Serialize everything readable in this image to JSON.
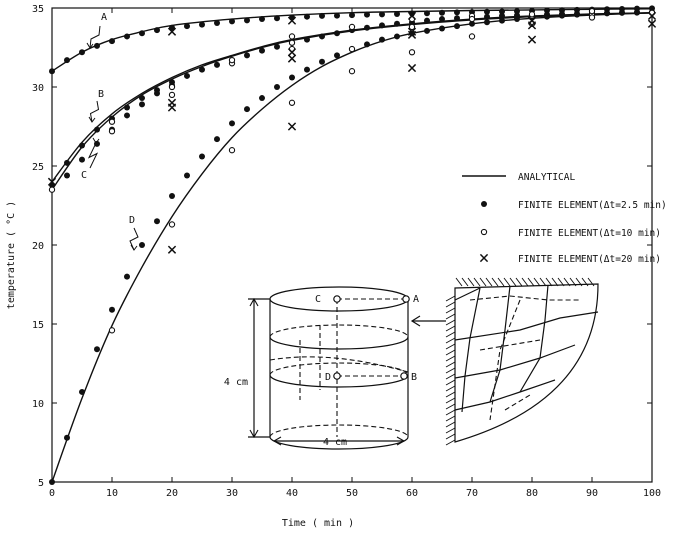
{
  "chart_data": {
    "type": "line",
    "xlabel": "Time ( min )",
    "ylabel": "temperature ( °C )",
    "xlim": [
      0,
      100
    ],
    "ylim": [
      5,
      35
    ],
    "x_ticks": [
      0,
      10,
      20,
      30,
      40,
      50,
      60,
      70,
      80,
      90,
      100
    ],
    "y_ticks": [
      5,
      10,
      15,
      20,
      25,
      30,
      35
    ],
    "grid": false,
    "legend": {
      "placement": "center-right",
      "entries": [
        {
          "marker": "line",
          "label": "ANALYTICAL"
        },
        {
          "marker": "filled-circle",
          "label": "FINITE ELEMENT(Δt=2.5 min)"
        },
        {
          "marker": "open-circle",
          "label": "FINITE ELEMENT(Δt=10  min)"
        },
        {
          "marker": "cross",
          "label": "FINITE ELEMENT(Δt=20  min)"
        }
      ]
    },
    "analytical_curves": [
      {
        "label": "A",
        "x": [
          0,
          5,
          10,
          15,
          20,
          30,
          40,
          50,
          60,
          70,
          80,
          90,
          100
        ],
        "y": [
          31.0,
          32.2,
          33.0,
          33.5,
          33.9,
          34.3,
          34.55,
          34.7,
          34.78,
          34.84,
          34.88,
          34.92,
          34.95
        ]
      },
      {
        "label": "B",
        "x": [
          0,
          5,
          10,
          15,
          20,
          25,
          30,
          35,
          40,
          50,
          60,
          70,
          80,
          90,
          100
        ],
        "y": [
          24.0,
          26.5,
          28.3,
          29.6,
          30.6,
          31.4,
          32.0,
          32.55,
          33.0,
          33.6,
          34.0,
          34.3,
          34.5,
          34.62,
          34.7
        ]
      },
      {
        "label": "C",
        "x": [
          0,
          5,
          10,
          15,
          20,
          25,
          30,
          35,
          40,
          50,
          60,
          70,
          80,
          90,
          100
        ],
        "y": [
          23.5,
          26.2,
          28.1,
          29.5,
          30.5,
          31.3,
          31.95,
          32.5,
          32.95,
          33.55,
          33.95,
          34.25,
          34.45,
          34.6,
          34.68
        ]
      },
      {
        "label": "D",
        "x": [
          0,
          5,
          10,
          15,
          20,
          25,
          30,
          35,
          40,
          45,
          50,
          55,
          60,
          70,
          80,
          90,
          100
        ],
        "y": [
          5.0,
          10.3,
          14.9,
          18.6,
          21.8,
          24.5,
          26.8,
          28.6,
          30.1,
          31.3,
          32.2,
          32.9,
          33.4,
          34.0,
          34.35,
          34.55,
          34.7
        ]
      }
    ],
    "series": [
      {
        "marker": "filled-circle",
        "points": [
          [
            0,
            31.0
          ],
          [
            2.5,
            31.7
          ],
          [
            5,
            32.2
          ],
          [
            7.5,
            32.6
          ],
          [
            10,
            32.9
          ],
          [
            12.5,
            33.2
          ],
          [
            15,
            33.4
          ],
          [
            17.5,
            33.6
          ],
          [
            20,
            33.75
          ],
          [
            22.5,
            33.85
          ],
          [
            25,
            33.95
          ],
          [
            27.5,
            34.05
          ],
          [
            30,
            34.15
          ],
          [
            32.5,
            34.22
          ],
          [
            35,
            34.3
          ],
          [
            37.5,
            34.35
          ],
          [
            40,
            34.4
          ],
          [
            42.5,
            34.45
          ],
          [
            45,
            34.5
          ],
          [
            47.5,
            34.52
          ],
          [
            50,
            34.55
          ],
          [
            52.5,
            34.58
          ],
          [
            55,
            34.6
          ],
          [
            57.5,
            34.62
          ],
          [
            60,
            34.65
          ],
          [
            62.5,
            34.67
          ],
          [
            65,
            34.7
          ],
          [
            67.5,
            34.72
          ],
          [
            70,
            34.74
          ],
          [
            72.5,
            34.76
          ],
          [
            75,
            34.78
          ],
          [
            77.5,
            34.8
          ],
          [
            80,
            34.82
          ],
          [
            82.5,
            34.84
          ],
          [
            85,
            34.86
          ],
          [
            87.5,
            34.88
          ],
          [
            90,
            34.9
          ],
          [
            92.5,
            34.92
          ],
          [
            95,
            34.94
          ],
          [
            97.5,
            34.96
          ],
          [
            100,
            34.98
          ],
          [
            0,
            23.8
          ],
          [
            2.5,
            25.2
          ],
          [
            5,
            26.3
          ],
          [
            7.5,
            27.3
          ],
          [
            10,
            28.0
          ],
          [
            12.5,
            28.7
          ],
          [
            15,
            29.3
          ],
          [
            17.5,
            29.8
          ],
          [
            20,
            30.3
          ],
          [
            22.5,
            30.7
          ],
          [
            25,
            31.1
          ],
          [
            27.5,
            31.4
          ],
          [
            30,
            31.7
          ],
          [
            32.5,
            32.0
          ],
          [
            35,
            32.3
          ],
          [
            37.5,
            32.55
          ],
          [
            40,
            32.8
          ],
          [
            42.5,
            33.0
          ],
          [
            45,
            33.2
          ],
          [
            47.5,
            33.4
          ],
          [
            50,
            33.6
          ],
          [
            52.5,
            33.75
          ],
          [
            55,
            33.9
          ],
          [
            57.5,
            34.0
          ],
          [
            60,
            34.1
          ],
          [
            62.5,
            34.2
          ],
          [
            65,
            34.3
          ],
          [
            67.5,
            34.35
          ],
          [
            70,
            34.4
          ],
          [
            72.5,
            34.45
          ],
          [
            75,
            34.5
          ],
          [
            77.5,
            34.53
          ],
          [
            80,
            34.56
          ],
          [
            82.5,
            34.59
          ],
          [
            85,
            34.62
          ],
          [
            87.5,
            34.64
          ],
          [
            90,
            34.66
          ],
          [
            92.5,
            34.68
          ],
          [
            95,
            34.7
          ],
          [
            97.5,
            34.71
          ],
          [
            100,
            34.72
          ],
          [
            2.5,
            24.4
          ],
          [
            5,
            25.4
          ],
          [
            7.5,
            26.4
          ],
          [
            10,
            27.3
          ],
          [
            12.5,
            28.2
          ],
          [
            15,
            28.9
          ],
          [
            17.5,
            29.6
          ],
          [
            20,
            30.1
          ],
          [
            0,
            5.0
          ],
          [
            2.5,
            7.8
          ],
          [
            5,
            10.7
          ],
          [
            7.5,
            13.4
          ],
          [
            10,
            15.9
          ],
          [
            12.5,
            18.0
          ],
          [
            15,
            20.0
          ],
          [
            17.5,
            21.5
          ],
          [
            20,
            23.1
          ],
          [
            22.5,
            24.4
          ],
          [
            25,
            25.6
          ],
          [
            27.5,
            26.7
          ],
          [
            30,
            27.7
          ],
          [
            32.5,
            28.6
          ],
          [
            35,
            29.3
          ],
          [
            37.5,
            30.0
          ],
          [
            40,
            30.6
          ],
          [
            42.5,
            31.1
          ],
          [
            45,
            31.6
          ],
          [
            47.5,
            32.0
          ],
          [
            50,
            32.4
          ],
          [
            52.5,
            32.7
          ],
          [
            55,
            33.0
          ],
          [
            57.5,
            33.2
          ],
          [
            60,
            33.4
          ],
          [
            62.5,
            33.55
          ],
          [
            65,
            33.7
          ],
          [
            67.5,
            33.85
          ],
          [
            70,
            34.0
          ],
          [
            72.5,
            34.1
          ],
          [
            75,
            34.2
          ],
          [
            77.5,
            34.3
          ],
          [
            80,
            34.38
          ],
          [
            82.5,
            34.45
          ],
          [
            85,
            34.52
          ],
          [
            87.5,
            34.58
          ],
          [
            90,
            34.62
          ],
          [
            92.5,
            34.66
          ],
          [
            95,
            34.7
          ],
          [
            97.5,
            34.73
          ],
          [
            100,
            34.75
          ]
        ]
      },
      {
        "marker": "open-circle",
        "points": [
          [
            0,
            23.5
          ],
          [
            10,
            27.2
          ],
          [
            20,
            30.0
          ],
          [
            30,
            31.5
          ],
          [
            40,
            32.8
          ],
          [
            50,
            33.8
          ],
          [
            60,
            34.3
          ],
          [
            70,
            34.5
          ],
          [
            80,
            34.5
          ],
          [
            90,
            34.6
          ],
          [
            100,
            34.7
          ],
          [
            10,
            27.8
          ],
          [
            20,
            29.5
          ],
          [
            30,
            31.7
          ],
          [
            40,
            32.4
          ],
          [
            50,
            32.4
          ],
          [
            60,
            33.8
          ],
          [
            70,
            34.3
          ],
          [
            80,
            34.6
          ],
          [
            90,
            34.8
          ],
          [
            10,
            14.6
          ],
          [
            20,
            21.3
          ],
          [
            30,
            26.0
          ],
          [
            40,
            29.0
          ],
          [
            50,
            31.0
          ],
          [
            60,
            32.2
          ],
          [
            70,
            33.2
          ],
          [
            80,
            34.0
          ],
          [
            90,
            34.4
          ],
          [
            40,
            33.2
          ]
        ]
      },
      {
        "marker": "cross",
        "points": [
          [
            0,
            24.0
          ],
          [
            20,
            29.0
          ],
          [
            40,
            31.8
          ],
          [
            60,
            33.5
          ],
          [
            80,
            34.2
          ],
          [
            100,
            34.5
          ],
          [
            20,
            28.7
          ],
          [
            40,
            32.2
          ],
          [
            60,
            33.3
          ],
          [
            80,
            33.9
          ],
          [
            20,
            19.7
          ],
          [
            40,
            27.5
          ],
          [
            60,
            31.2
          ],
          [
            80,
            33.0
          ],
          [
            100,
            34.0
          ],
          [
            20,
            33.5
          ],
          [
            40,
            34.2
          ],
          [
            60,
            34.5
          ]
        ]
      }
    ]
  },
  "diagram": {
    "points": [
      "A",
      "B",
      "C",
      "D"
    ],
    "height_label": "4 cm",
    "diameter_label": "4 cm"
  }
}
